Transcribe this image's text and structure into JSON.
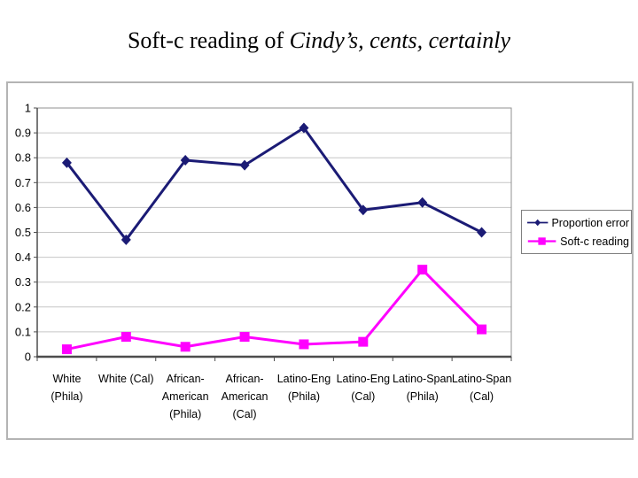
{
  "title": {
    "prefix": "Soft-c reading of ",
    "italic": "Cindy’s, cents, certainly"
  },
  "chart_data": {
    "type": "line",
    "title": "Soft-c reading of Cindy’s, cents, certainly",
    "categories": [
      "White (Phila)",
      "White (Cal)",
      "African-American (Phila)",
      "African-American (Cal)",
      "Latino-Eng (Phila)",
      "Latino-Eng (Cal)",
      "Latino-Span (Phila)",
      "Latino-Span (Cal)"
    ],
    "category_label_lines": [
      [
        "White",
        "(Phila)"
      ],
      [
        "White (Cal)"
      ],
      [
        "African-",
        "American",
        "(Phila)"
      ],
      [
        "African-",
        "American",
        "(Cal)"
      ],
      [
        "Latino-Eng",
        "(Phila)"
      ],
      [
        "Latino-Eng",
        "(Cal)"
      ],
      [
        "Latino-Span",
        "(Phila)"
      ],
      [
        "Latino-Span",
        "(Cal)"
      ]
    ],
    "series": [
      {
        "name": "Proportion error",
        "marker": "diamond",
        "color": "#1b1b75",
        "values": [
          0.78,
          0.47,
          0.79,
          0.77,
          0.92,
          0.59,
          0.62,
          0.5
        ]
      },
      {
        "name": "Soft-c reading",
        "marker": "square",
        "color": "#ff00ff",
        "values": [
          0.03,
          0.08,
          0.04,
          0.08,
          0.05,
          0.06,
          0.35,
          0.11
        ]
      }
    ],
    "xlabel": "",
    "ylabel": "",
    "ylim": [
      0,
      1
    ],
    "ytick_labels": [
      "0",
      "0.1",
      "0.2",
      "0.3",
      "0.4",
      "0.5",
      "0.6",
      "0.7",
      "0.8",
      "0.9",
      "1"
    ],
    "grid": "horizontal",
    "legend_position": "right"
  }
}
